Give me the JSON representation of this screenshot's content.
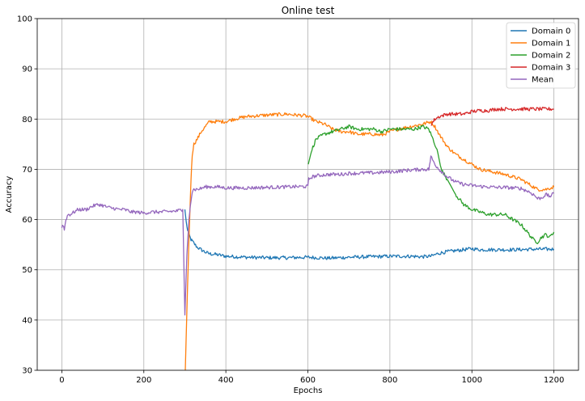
{
  "chart_data": {
    "type": "line",
    "title": "Online test",
    "xlabel": "Epochs",
    "ylabel": "Accuracy",
    "xlim": [
      -60,
      1260
    ],
    "ylim": [
      30,
      100
    ],
    "xticks": [
      0,
      200,
      400,
      600,
      800,
      1000,
      1200
    ],
    "yticks": [
      30,
      40,
      50,
      60,
      70,
      80,
      90,
      100
    ],
    "grid": true,
    "legend_position": "top-right",
    "series": [
      {
        "name": "Domain 0",
        "color": "#1f77b4",
        "points": [
          [
            300,
            62
          ],
          [
            305,
            58.5
          ],
          [
            310,
            57
          ],
          [
            315,
            56
          ],
          [
            320,
            55.5
          ],
          [
            330,
            54.5
          ],
          [
            340,
            54
          ],
          [
            350,
            53.5
          ],
          [
            360,
            53.2
          ],
          [
            380,
            53
          ],
          [
            400,
            52.7
          ],
          [
            450,
            52.5
          ],
          [
            500,
            52.4
          ],
          [
            550,
            52.4
          ],
          [
            600,
            52.5
          ],
          [
            650,
            52.3
          ],
          [
            700,
            52.5
          ],
          [
            750,
            52.6
          ],
          [
            800,
            52.7
          ],
          [
            850,
            52.7
          ],
          [
            880,
            52.6
          ],
          [
            900,
            52.7
          ],
          [
            920,
            53.3
          ],
          [
            940,
            53.6
          ],
          [
            960,
            53.8
          ],
          [
            980,
            54
          ],
          [
            1000,
            54.2
          ],
          [
            1020,
            54
          ],
          [
            1050,
            54
          ],
          [
            1080,
            54
          ],
          [
            1100,
            54
          ],
          [
            1150,
            54.1
          ],
          [
            1200,
            54.1
          ]
        ]
      },
      {
        "name": "Domain 1",
        "color": "#ff7f0e",
        "points": [
          [
            301,
            30
          ],
          [
            305,
            42
          ],
          [
            310,
            56
          ],
          [
            315,
            68
          ],
          [
            318,
            73
          ],
          [
            322,
            75
          ],
          [
            330,
            76
          ],
          [
            340,
            77.5
          ],
          [
            350,
            78.5
          ],
          [
            360,
            79.5
          ],
          [
            380,
            79.5
          ],
          [
            400,
            79.5
          ],
          [
            420,
            80
          ],
          [
            450,
            80.5
          ],
          [
            500,
            80.8
          ],
          [
            550,
            81
          ],
          [
            570,
            80.8
          ],
          [
            590,
            80.7
          ],
          [
            600,
            80.5
          ],
          [
            620,
            79.5
          ],
          [
            640,
            79
          ],
          [
            660,
            78
          ],
          [
            680,
            77.5
          ],
          [
            700,
            77.5
          ],
          [
            720,
            77
          ],
          [
            740,
            77
          ],
          [
            760,
            77
          ],
          [
            780,
            76.8
          ],
          [
            800,
            77.5
          ],
          [
            820,
            78
          ],
          [
            850,
            78.5
          ],
          [
            880,
            79
          ],
          [
            900,
            79.5
          ],
          [
            910,
            78.5
          ],
          [
            920,
            77
          ],
          [
            940,
            74.5
          ],
          [
            960,
            73
          ],
          [
            980,
            72
          ],
          [
            1000,
            71
          ],
          [
            1020,
            70
          ],
          [
            1050,
            69.5
          ],
          [
            1080,
            69
          ],
          [
            1100,
            68.5
          ],
          [
            1120,
            68
          ],
          [
            1140,
            67
          ],
          [
            1160,
            66
          ],
          [
            1180,
            66
          ],
          [
            1200,
            66.5
          ]
        ]
      },
      {
        "name": "Domain 2",
        "color": "#2ca02c",
        "points": [
          [
            601,
            71
          ],
          [
            610,
            74
          ],
          [
            620,
            76
          ],
          [
            640,
            77
          ],
          [
            660,
            77.5
          ],
          [
            680,
            78
          ],
          [
            700,
            78.5
          ],
          [
            720,
            78
          ],
          [
            740,
            78
          ],
          [
            760,
            78
          ],
          [
            780,
            77.5
          ],
          [
            800,
            78
          ],
          [
            820,
            78
          ],
          [
            840,
            78
          ],
          [
            860,
            78
          ],
          [
            880,
            78.5
          ],
          [
            895,
            78
          ],
          [
            905,
            76
          ],
          [
            915,
            74
          ],
          [
            925,
            70
          ],
          [
            940,
            68
          ],
          [
            960,
            65
          ],
          [
            980,
            63
          ],
          [
            1000,
            62
          ],
          [
            1020,
            61.5
          ],
          [
            1040,
            61
          ],
          [
            1060,
            61
          ],
          [
            1080,
            61
          ],
          [
            1100,
            60
          ],
          [
            1120,
            59
          ],
          [
            1140,
            57
          ],
          [
            1150,
            56
          ],
          [
            1160,
            55.5
          ],
          [
            1170,
            56.5
          ],
          [
            1180,
            57
          ],
          [
            1190,
            56.5
          ],
          [
            1200,
            57.5
          ]
        ]
      },
      {
        "name": "Domain 3",
        "color": "#d62728",
        "points": [
          [
            901,
            79
          ],
          [
            910,
            80
          ],
          [
            920,
            80.5
          ],
          [
            940,
            81
          ],
          [
            960,
            81
          ],
          [
            980,
            81
          ],
          [
            1000,
            81.5
          ],
          [
            1020,
            81.7
          ],
          [
            1040,
            81.7
          ],
          [
            1060,
            82
          ],
          [
            1080,
            82
          ],
          [
            1100,
            82
          ],
          [
            1120,
            82
          ],
          [
            1140,
            82
          ],
          [
            1160,
            82
          ],
          [
            1180,
            82
          ],
          [
            1200,
            82
          ]
        ]
      },
      {
        "name": "Mean",
        "color": "#9467bd",
        "points": [
          [
            0,
            58.5
          ],
          [
            3,
            59
          ],
          [
            6,
            58
          ],
          [
            10,
            60
          ],
          [
            15,
            61
          ],
          [
            20,
            61
          ],
          [
            30,
            61.5
          ],
          [
            40,
            62
          ],
          [
            50,
            62
          ],
          [
            60,
            62
          ],
          [
            70,
            62.5
          ],
          [
            80,
            62.8
          ],
          [
            90,
            63
          ],
          [
            100,
            62.8
          ],
          [
            110,
            62.5
          ],
          [
            120,
            62.3
          ],
          [
            130,
            62.2
          ],
          [
            140,
            62
          ],
          [
            150,
            62
          ],
          [
            160,
            61.8
          ],
          [
            170,
            61.5
          ],
          [
            180,
            61.5
          ],
          [
            200,
            61.3
          ],
          [
            220,
            61.5
          ],
          [
            240,
            61.5
          ],
          [
            260,
            61.6
          ],
          [
            280,
            61.7
          ],
          [
            295,
            62
          ],
          [
            300,
            41
          ],
          [
            305,
            53
          ],
          [
            310,
            60
          ],
          [
            315,
            64
          ],
          [
            318,
            65.5
          ],
          [
            320,
            66
          ],
          [
            330,
            66
          ],
          [
            340,
            66.2
          ],
          [
            350,
            66.5
          ],
          [
            360,
            66.5
          ],
          [
            380,
            66.5
          ],
          [
            400,
            66.3
          ],
          [
            450,
            66.3
          ],
          [
            500,
            66.4
          ],
          [
            550,
            66.5
          ],
          [
            600,
            66.6
          ],
          [
            602,
            68
          ],
          [
            610,
            68.5
          ],
          [
            620,
            68.7
          ],
          [
            640,
            68.9
          ],
          [
            660,
            69
          ],
          [
            680,
            69
          ],
          [
            700,
            69.2
          ],
          [
            720,
            69.2
          ],
          [
            740,
            69.3
          ],
          [
            760,
            69.3
          ],
          [
            780,
            69.4
          ],
          [
            800,
            69.5
          ],
          [
            820,
            69.6
          ],
          [
            840,
            69.8
          ],
          [
            860,
            69.9
          ],
          [
            880,
            70
          ],
          [
            895,
            70
          ],
          [
            900,
            72.5
          ],
          [
            910,
            71
          ],
          [
            920,
            70
          ],
          [
            940,
            68.5
          ],
          [
            960,
            67.5
          ],
          [
            980,
            67
          ],
          [
            1000,
            66.8
          ],
          [
            1020,
            66.6
          ],
          [
            1040,
            66.5
          ],
          [
            1060,
            66.4
          ],
          [
            1080,
            66.4
          ],
          [
            1100,
            66.3
          ],
          [
            1120,
            66.2
          ],
          [
            1140,
            65.5
          ],
          [
            1150,
            65
          ],
          [
            1160,
            64.2
          ],
          [
            1170,
            64.3
          ],
          [
            1180,
            65
          ],
          [
            1190,
            64.6
          ],
          [
            1200,
            65.2
          ]
        ]
      }
    ]
  }
}
